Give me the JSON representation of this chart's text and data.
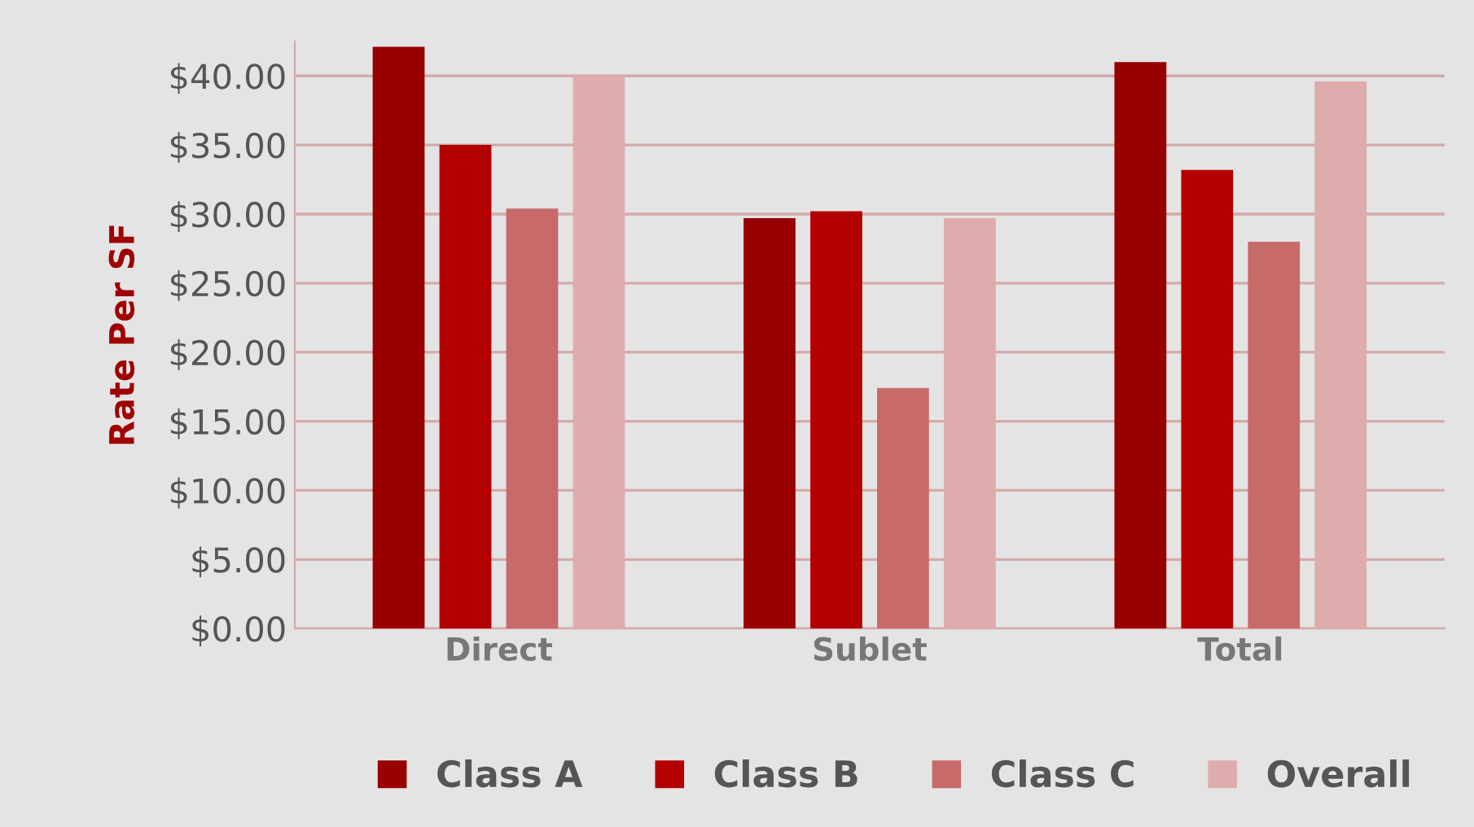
{
  "chart_data": {
    "type": "bar",
    "ylabel": "Rate Per SF",
    "categories": [
      "Direct",
      "Sublet",
      "Total"
    ],
    "series": [
      {
        "name": "Class A",
        "color": "#990000",
        "values": [
          42.1,
          29.7,
          41.0
        ]
      },
      {
        "name": "Class B",
        "color": "#b30000",
        "values": [
          35.0,
          30.2,
          33.2
        ]
      },
      {
        "name": "Class C",
        "color": "#c86a6a",
        "values": [
          30.4,
          17.4,
          28.0
        ]
      },
      {
        "name": "Overall",
        "color": "#deacac",
        "values": [
          40.0,
          29.7,
          39.6
        ]
      }
    ],
    "ylim": [
      0,
      42.5
    ],
    "yticks": [
      {
        "value": 0,
        "label": "$0.00"
      },
      {
        "value": 5,
        "label": "$5.00"
      },
      {
        "value": 10,
        "label": "$10.00"
      },
      {
        "value": 15,
        "label": "$15.00"
      },
      {
        "value": 20,
        "label": "$20.00"
      },
      {
        "value": 25,
        "label": "$25.00"
      },
      {
        "value": 30,
        "label": "$30.00"
      },
      {
        "value": 35,
        "label": "$35.00"
      },
      {
        "value": 40,
        "label": "$40.00"
      }
    ],
    "grid": "y",
    "legend": "bottom"
  }
}
